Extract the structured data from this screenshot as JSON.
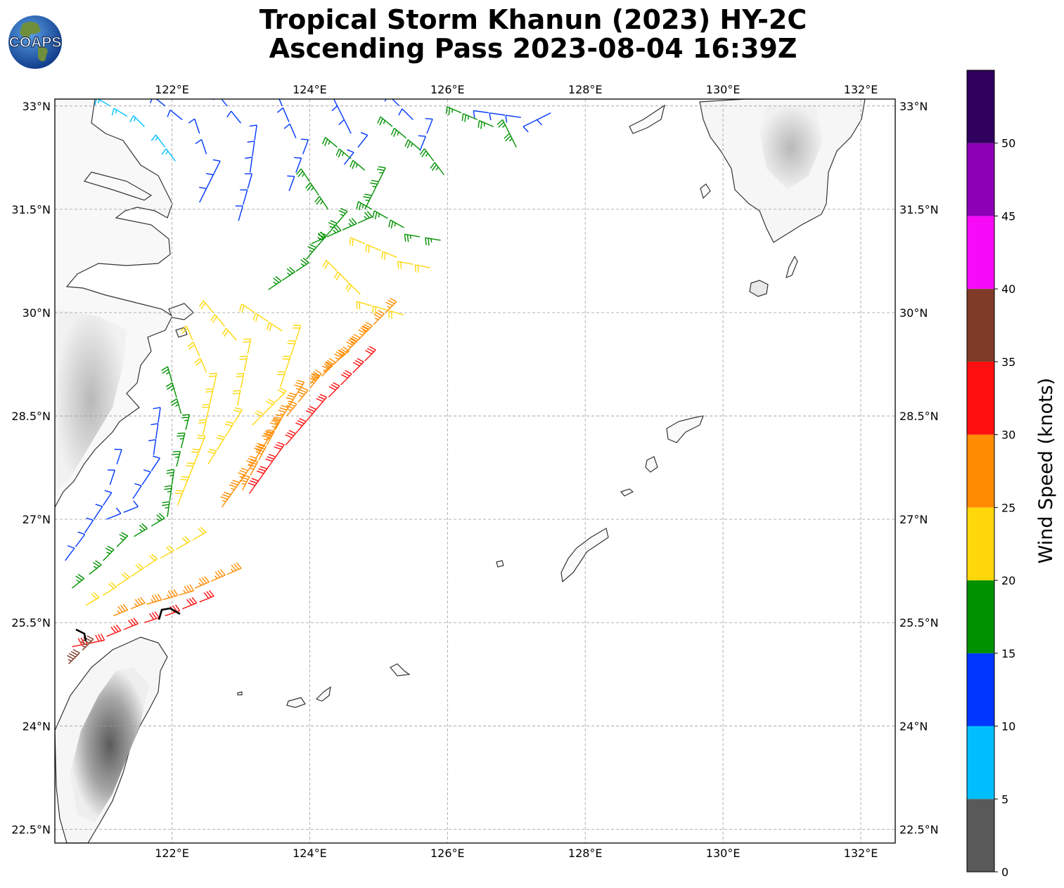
{
  "title": {
    "line1": "Tropical Storm Khanun (2023) HY-2C",
    "line2": "Ascending Pass 2023-08-04 16:39Z"
  },
  "logo": {
    "text": "COAPS",
    "icon": "globe-icon"
  },
  "map": {
    "lon_range": [
      120.3,
      132.5
    ],
    "lat_range": [
      22.3,
      33.1
    ],
    "lon_ticks": [
      {
        "v": 122,
        "label": "122°E"
      },
      {
        "v": 124,
        "label": "124°E"
      },
      {
        "v": 126,
        "label": "126°E"
      },
      {
        "v": 128,
        "label": "128°E"
      },
      {
        "v": 130,
        "label": "130°E"
      },
      {
        "v": 132,
        "label": "132°E"
      }
    ],
    "lat_ticks": [
      {
        "v": 33,
        "label": "33°N"
      },
      {
        "v": 31.5,
        "label": "31.5°N"
      },
      {
        "v": 30,
        "label": "30°N"
      },
      {
        "v": 28.5,
        "label": "28.5°N"
      },
      {
        "v": 27,
        "label": "27°N"
      },
      {
        "v": 25.5,
        "label": "25.5°N"
      },
      {
        "v": 24,
        "label": "24°N"
      },
      {
        "v": 22.5,
        "label": "22.5°N"
      }
    ],
    "grid": true,
    "wind_arcs": [
      {
        "speed": 7,
        "pts": [
          [
            121.1,
            33.0
          ],
          [
            121.6,
            32.7
          ],
          [
            121.9,
            32.4
          ],
          [
            122.2,
            32.0
          ]
        ]
      },
      {
        "speed": 12,
        "pts": [
          [
            121.9,
            33.0
          ],
          [
            122.4,
            32.6
          ],
          [
            122.6,
            32.0
          ],
          [
            122.3,
            31.4
          ]
        ]
      },
      {
        "speed": 12,
        "pts": [
          [
            122.8,
            33.0
          ],
          [
            123.2,
            32.5
          ],
          [
            123.1,
            31.8
          ],
          [
            122.9,
            31.1
          ]
        ]
      },
      {
        "speed": 12,
        "pts": [
          [
            123.6,
            33.0
          ],
          [
            123.9,
            32.3
          ],
          [
            123.6,
            31.5
          ]
        ]
      },
      {
        "speed": 12,
        "pts": [
          [
            124.4,
            33.0
          ],
          [
            124.7,
            32.4
          ],
          [
            124.3,
            31.9
          ]
        ]
      },
      {
        "speed": 12,
        "pts": [
          [
            125.3,
            33.0
          ],
          [
            125.7,
            32.6
          ],
          [
            125.5,
            32.1
          ]
        ]
      },
      {
        "speed": 12,
        "pts": [
          [
            126.6,
            32.9
          ],
          [
            127.3,
            32.8
          ],
          [
            127.7,
            33.0
          ]
        ]
      },
      {
        "speed": 17,
        "pts": [
          [
            126.2,
            32.9
          ],
          [
            126.9,
            32.6
          ],
          [
            127.1,
            32.2
          ]
        ]
      },
      {
        "speed": 17,
        "pts": [
          [
            125.2,
            32.7
          ],
          [
            125.8,
            32.2
          ],
          [
            126.1,
            31.8
          ]
        ]
      },
      {
        "speed": 17,
        "pts": [
          [
            124.4,
            32.4
          ],
          [
            125.0,
            31.9
          ],
          [
            124.7,
            31.3
          ],
          [
            123.8,
            30.9
          ]
        ]
      },
      {
        "speed": 17,
        "pts": [
          [
            124.0,
            31.9
          ],
          [
            124.4,
            31.3
          ],
          [
            123.8,
            30.6
          ],
          [
            123.2,
            30.2
          ]
        ]
      },
      {
        "speed": 17,
        "pts": [
          [
            124.9,
            31.5
          ],
          [
            125.6,
            31.1
          ],
          [
            126.2,
            31.0
          ]
        ]
      },
      {
        "speed": 22,
        "pts": [
          [
            124.8,
            31.0
          ],
          [
            125.5,
            30.7
          ],
          [
            126.0,
            30.6
          ]
        ]
      },
      {
        "speed": 22,
        "pts": [
          [
            124.4,
            30.6
          ],
          [
            124.9,
            30.1
          ],
          [
            125.6,
            29.9
          ]
        ]
      },
      {
        "speed": 22,
        "pts": [
          [
            123.2,
            30.0
          ],
          [
            123.8,
            29.6
          ],
          [
            123.5,
            28.7
          ],
          [
            123.0,
            28.2
          ]
        ]
      },
      {
        "speed": 22,
        "pts": [
          [
            122.6,
            30.0
          ],
          [
            123.1,
            29.4
          ],
          [
            122.9,
            28.4
          ],
          [
            122.4,
            27.6
          ]
        ]
      },
      {
        "speed": 22,
        "pts": [
          [
            122.3,
            29.6
          ],
          [
            122.6,
            28.9
          ],
          [
            122.4,
            28.0
          ],
          [
            122.0,
            27.0
          ]
        ]
      },
      {
        "speed": 17,
        "pts": [
          [
            122.0,
            29.0
          ],
          [
            122.2,
            28.3
          ],
          [
            122.0,
            27.5
          ],
          [
            121.9,
            26.8
          ]
        ]
      },
      {
        "speed": 12,
        "pts": [
          [
            121.8,
            28.4
          ],
          [
            121.7,
            27.7
          ],
          [
            121.3,
            27.1
          ],
          [
            120.8,
            26.9
          ]
        ]
      },
      {
        "speed": 12,
        "pts": [
          [
            121.2,
            27.8
          ],
          [
            121.0,
            27.2
          ],
          [
            120.6,
            26.6
          ],
          [
            120.3,
            26.2
          ]
        ]
      },
      {
        "speed": 17,
        "pts": [
          [
            121.7,
            26.9
          ],
          [
            121.2,
            26.6
          ],
          [
            120.8,
            26.2
          ],
          [
            120.3,
            25.8
          ]
        ]
      },
      {
        "speed": 22,
        "pts": [
          [
            122.3,
            26.7
          ],
          [
            121.6,
            26.3
          ],
          [
            121.0,
            25.9
          ],
          [
            120.5,
            25.6
          ]
        ]
      },
      {
        "speed": 27,
        "pts": [
          [
            125.1,
            30.0
          ],
          [
            124.4,
            29.3
          ],
          [
            123.8,
            28.8
          ],
          [
            123.1,
            27.7
          ],
          [
            122.6,
            27.0
          ]
        ]
      },
      {
        "speed": 27,
        "pts": [
          [
            124.7,
            29.6
          ],
          [
            124.0,
            28.9
          ],
          [
            123.5,
            28.3
          ],
          [
            122.9,
            27.2
          ]
        ]
      },
      {
        "speed": 27,
        "pts": [
          [
            122.8,
            26.2
          ],
          [
            122.1,
            25.9
          ],
          [
            121.4,
            25.7
          ],
          [
            120.9,
            25.5
          ]
        ]
      },
      {
        "speed": 32,
        "pts": [
          [
            124.8,
            29.3
          ],
          [
            124.1,
            28.6
          ],
          [
            123.5,
            27.9
          ],
          [
            123.0,
            27.2
          ]
        ]
      },
      {
        "speed": 32,
        "pts": [
          [
            122.4,
            25.8
          ],
          [
            121.9,
            25.6
          ],
          [
            121.3,
            25.4
          ],
          [
            120.8,
            25.2
          ],
          [
            120.3,
            25.1
          ]
        ]
      },
      {
        "speed": 37,
        "pts": [
          [
            120.7,
            25.1
          ],
          [
            120.5,
            24.9
          ],
          [
            120.3,
            24.7
          ]
        ]
      }
    ]
  },
  "colorbar": {
    "label": "Wind Speed (knots)",
    "bins": [
      {
        "min": 0,
        "max": 5,
        "color": "#595959"
      },
      {
        "min": 5,
        "max": 10,
        "color": "#00bfff"
      },
      {
        "min": 10,
        "max": 15,
        "color": "#0037ff"
      },
      {
        "min": 15,
        "max": 20,
        "color": "#009100"
      },
      {
        "min": 20,
        "max": 25,
        "color": "#ffd70a"
      },
      {
        "min": 25,
        "max": 30,
        "color": "#ff8c00"
      },
      {
        "min": 30,
        "max": 35,
        "color": "#ff0f0f"
      },
      {
        "min": 35,
        "max": 40,
        "color": "#7f3b27"
      },
      {
        "min": 40,
        "max": 45,
        "color": "#f70af7"
      },
      {
        "min": 45,
        "max": 50,
        "color": "#8b00b5"
      },
      {
        "min": 50,
        "max": 55,
        "color": "#2f005e"
      }
    ],
    "ticks": [
      {
        "v": 0,
        "label": "0"
      },
      {
        "v": 5,
        "label": "5"
      },
      {
        "v": 10,
        "label": "10"
      },
      {
        "v": 15,
        "label": "15"
      },
      {
        "v": 20,
        "label": "20"
      },
      {
        "v": 25,
        "label": "25"
      },
      {
        "v": 30,
        "label": "30"
      },
      {
        "v": 35,
        "label": "35"
      },
      {
        "v": 40,
        "label": "40"
      },
      {
        "v": 45,
        "label": "45"
      },
      {
        "v": 50,
        "label": "50"
      }
    ]
  }
}
